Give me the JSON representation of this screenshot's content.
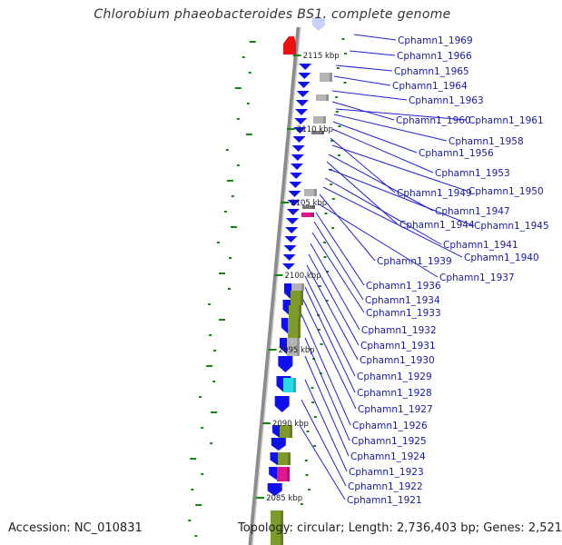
{
  "title": "Chlorobium phaeobacteroides BS1, complete genome",
  "footer": {
    "accession": "Accession: NC_010831",
    "summary": "Topology: circular; Length: 2,736,403 bp; Genes: 2,521"
  },
  "colors": {
    "label": "#1a1aa6",
    "leader": "#2222cc",
    "backbone": "#8c8c8c",
    "gc_skew": "#118811",
    "gene_blue": "#1010ee",
    "gene_olive": "#7e9a2a",
    "gene_cyan": "#2ad9e6",
    "gene_gray": "#b4b4b4",
    "gene_magenta": "#e01890",
    "gene_red": "#ee1111"
  },
  "kbp_marks": [
    "2115 kbp",
    "2110 kbp",
    "2105 kbp",
    "2100 kbp",
    "2095 kbp",
    "2090 kbp",
    "2085 kbp"
  ],
  "gene_labels": [
    "Cphamn1_1969",
    "Cphamn1_1966",
    "Cphamn1_1965",
    "Cphamn1_1964",
    "Cphamn1_1963",
    "Cphamn1_1960",
    "Cphamn1_1961",
    "Cphamn1_1958",
    "Cphamn1_1956",
    "Cphamn1_1953",
    "Cphamn1_1949",
    "Cphamn1_1950",
    "Cphamn1_1947",
    "Cphamn1_1944",
    "Cphamn1_1945",
    "Cphamn1_1941",
    "Cphamn1_1940",
    "Cphamn1_1939",
    "Cphamn1_1937",
    "Cphamn1_1936",
    "Cphamn1_1934",
    "Cphamn1_1933",
    "Cphamn1_1932",
    "Cphamn1_1931",
    "Cphamn1_1930",
    "Cphamn1_1929",
    "Cphamn1_1928",
    "Cphamn1_1927",
    "Cphamn1_1926",
    "Cphamn1_1925",
    "Cphamn1_1924",
    "Cphamn1_1923",
    "Cphamn1_1922",
    "Cphamn1_1921"
  ]
}
